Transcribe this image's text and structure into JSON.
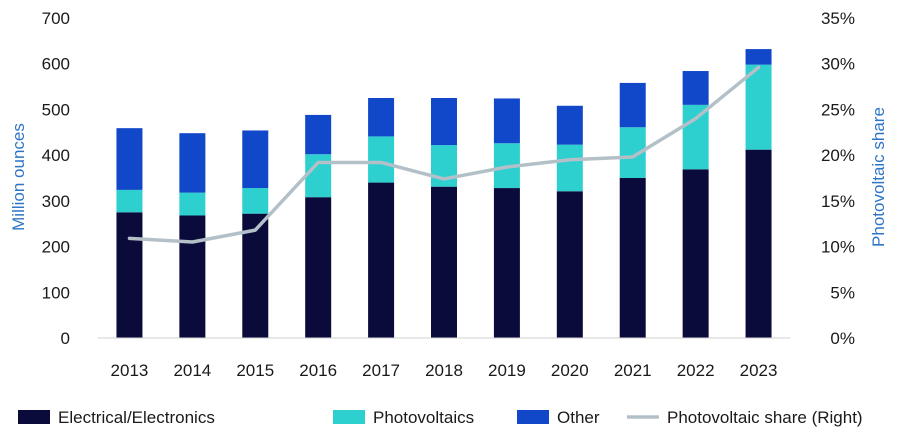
{
  "chart_data": {
    "type": "bar",
    "stacked": true,
    "categories": [
      "2013",
      "2014",
      "2015",
      "2016",
      "2017",
      "2018",
      "2019",
      "2020",
      "2021",
      "2022",
      "2023"
    ],
    "series": [
      {
        "name": "Electrical/Electronics",
        "axis": "left",
        "color": "#0b0b3b",
        "values": [
          275,
          268,
          272,
          308,
          340,
          331,
          328,
          321,
          350,
          369,
          412
        ]
      },
      {
        "name": "Photovoltaics",
        "axis": "left",
        "color": "#2ecfcf",
        "values": [
          49,
          50,
          56,
          94,
          101,
          91,
          98,
          102,
          111,
          141,
          186
        ]
      },
      {
        "name": "Other",
        "axis": "left",
        "color": "#1147c9",
        "values": [
          135,
          130,
          126,
          86,
          84,
          103,
          98,
          85,
          97,
          74,
          34
        ]
      },
      {
        "name": "Photovoltaic share (Right)",
        "type": "line",
        "axis": "right",
        "color": "#b4c0c8",
        "values": [
          0.109,
          0.105,
          0.118,
          0.192,
          0.192,
          0.174,
          0.187,
          0.195,
          0.198,
          0.24,
          0.296
        ]
      }
    ],
    "ylabel": "Million ounces",
    "y2label": "Photovoltaic share",
    "ylim": [
      0,
      700
    ],
    "y2lim": [
      0,
      0.35
    ],
    "yticks": [
      "0",
      "100",
      "200",
      "300",
      "400",
      "500",
      "600",
      "700"
    ],
    "y2ticks": [
      "0%",
      "5%",
      "10%",
      "15%",
      "20%",
      "25%",
      "30%",
      "35%"
    ],
    "grid": false,
    "legend_position": "bottom"
  }
}
